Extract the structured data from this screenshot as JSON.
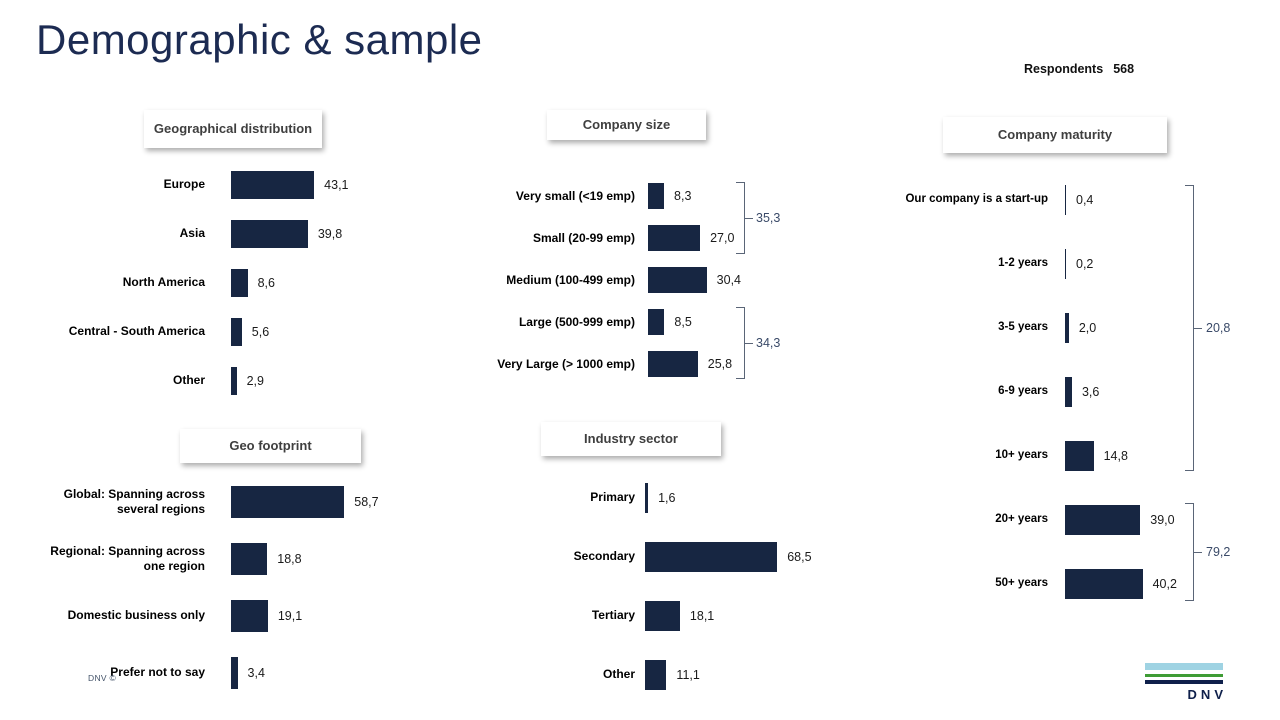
{
  "slide": {
    "title": "Demographic & sample",
    "respondents": {
      "label": "Respondents",
      "value": "568"
    },
    "footer_note": "DNV ©",
    "logo": {
      "text": "DNV"
    }
  },
  "colors": {
    "bar": "#172642",
    "slide_title": "#1c2b52",
    "bracket_line": "#5a6577",
    "bracket_label": "#3a4a68",
    "chart_title": "#3f3f3f",
    "logo_light_blue": "#9fd3e3",
    "logo_green": "#3f9c35",
    "logo_dark_blue": "#0f204b"
  },
  "chart_data": [
    {
      "id": "geographical-distribution",
      "type": "bar",
      "orientation": "horizontal",
      "title": "Geographical distribution",
      "unit": "percent",
      "xlim": [
        0,
        100
      ],
      "categories": [
        "Europe",
        "Asia",
        "North America",
        "Central - South America",
        "Other"
      ],
      "values": [
        43.1,
        39.8,
        8.6,
        5.6,
        2.9
      ],
      "value_labels": [
        "43,1",
        "39,8",
        "8,6",
        "5,6",
        "2,9"
      ]
    },
    {
      "id": "company-size",
      "type": "bar",
      "orientation": "horizontal",
      "title": "Company size",
      "unit": "percent",
      "xlim": [
        0,
        100
      ],
      "categories": [
        "Very small (<19 emp)",
        "Small (20-99 emp)",
        "Medium (100-499 emp)",
        "Large (500-999 emp)",
        "Very Large (> 1000 emp)"
      ],
      "values": [
        8.3,
        27.0,
        30.4,
        8.5,
        25.8
      ],
      "value_labels": [
        "8,3",
        "27,0",
        "30,4",
        "8,5",
        "25,8"
      ],
      "brackets": [
        {
          "label": "35,3",
          "value": 35.3,
          "from": "Very small (<19 emp)",
          "to": "Small (20-99 emp)"
        },
        {
          "label": "34,3",
          "value": 34.3,
          "from": "Large (500-999 emp)",
          "to": "Very Large (> 1000 emp)"
        }
      ]
    },
    {
      "id": "company-maturity",
      "type": "bar",
      "orientation": "horizontal",
      "title": "Company maturity",
      "unit": "percent",
      "xlim": [
        0,
        100
      ],
      "categories": [
        "Our company is a start-up",
        "1-2 years",
        "3-5 years",
        "6-9 years",
        "10+ years",
        "20+ years",
        "50+ years"
      ],
      "values": [
        0.4,
        0.2,
        2.0,
        3.6,
        14.8,
        39.0,
        40.2
      ],
      "value_labels": [
        "0,4",
        "0,2",
        "2,0",
        "3,6",
        "14,8",
        "39,0",
        "40,2"
      ],
      "brackets": [
        {
          "label": "20,8",
          "value": 20.8,
          "from": "Our company is a start-up",
          "to": "10+ years"
        },
        {
          "label": "79,2",
          "value": 79.2,
          "from": "20+ years",
          "to": "50+ years"
        }
      ]
    },
    {
      "id": "geo-footprint",
      "type": "bar",
      "orientation": "horizontal",
      "title": "Geo footprint",
      "unit": "percent",
      "xlim": [
        0,
        100
      ],
      "categories": [
        "Global: Spanning across several regions",
        "Regional: Spanning across one region",
        "Domestic business only",
        "Prefer not to say"
      ],
      "values": [
        58.7,
        18.8,
        19.1,
        3.4
      ],
      "value_labels": [
        "58,7",
        "18,8",
        "19,1",
        "3,4"
      ]
    },
    {
      "id": "industry-sector",
      "type": "bar",
      "orientation": "horizontal",
      "title": "Industry sector",
      "unit": "percent",
      "xlim": [
        0,
        100
      ],
      "categories": [
        "Primary",
        "Secondary",
        "Tertiary",
        "Other"
      ],
      "values": [
        1.6,
        68.5,
        18.1,
        11.1
      ],
      "value_labels": [
        "1,6",
        "68,5",
        "18,1",
        "11,1"
      ]
    }
  ]
}
